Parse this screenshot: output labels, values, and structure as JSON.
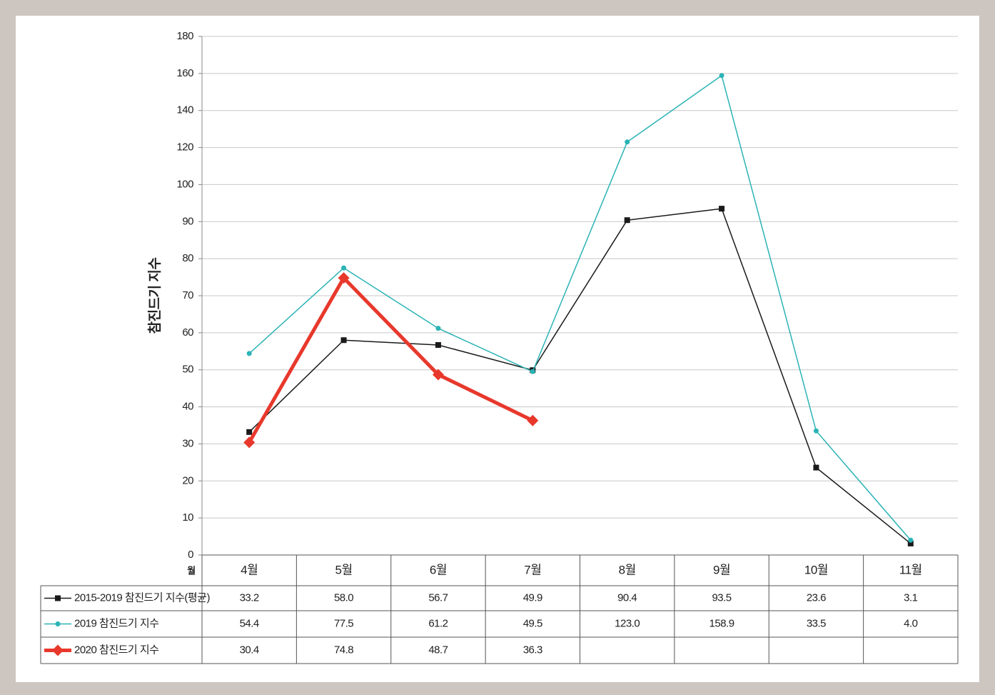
{
  "chart_data": {
    "type": "line",
    "y_label": "참진드기 지수",
    "x_label": "월",
    "categories": [
      "4월",
      "5월",
      "6월",
      "7월",
      "8월",
      "9월",
      "10월",
      "11월"
    ],
    "series": [
      {
        "name": "2015-2019 참진드기 지수(평균)",
        "color": "#1a1a1a",
        "marker": "square",
        "width": 1.5,
        "values": [
          33.2,
          58.0,
          56.7,
          49.9,
          90.4,
          93.5,
          23.6,
          3.1
        ],
        "value_labels": [
          "33.2",
          "58.0",
          "56.7",
          "49.9",
          "90.4",
          "93.5",
          "23.6",
          "3.1"
        ]
      },
      {
        "name": "2019 참진드기 지수",
        "color": "#2bb3b5",
        "marker": "circle",
        "width": 1.5,
        "values": [
          54.4,
          77.5,
          61.2,
          49.5,
          123.0,
          158.9,
          33.5,
          4.0
        ],
        "value_labels": [
          "54.4",
          "77.5",
          "61.2",
          "49.5",
          "123.0",
          "158.9",
          "33.5",
          "4.0"
        ]
      },
      {
        "name": "2020 참진드기 지수",
        "color": "#e8382c",
        "marker": "diamond",
        "width": 5,
        "values": [
          30.4,
          74.8,
          48.7,
          36.3,
          null,
          null,
          null,
          null
        ],
        "value_labels": [
          "30.4",
          "74.8",
          "48.7",
          "36.3",
          null,
          null,
          null,
          null
        ]
      }
    ],
    "ylim": [
      0,
      180
    ],
    "yticks": [
      0,
      10,
      20,
      30,
      40,
      50,
      60,
      70,
      80,
      90,
      100,
      120,
      140,
      160,
      180
    ],
    "grid": true
  }
}
